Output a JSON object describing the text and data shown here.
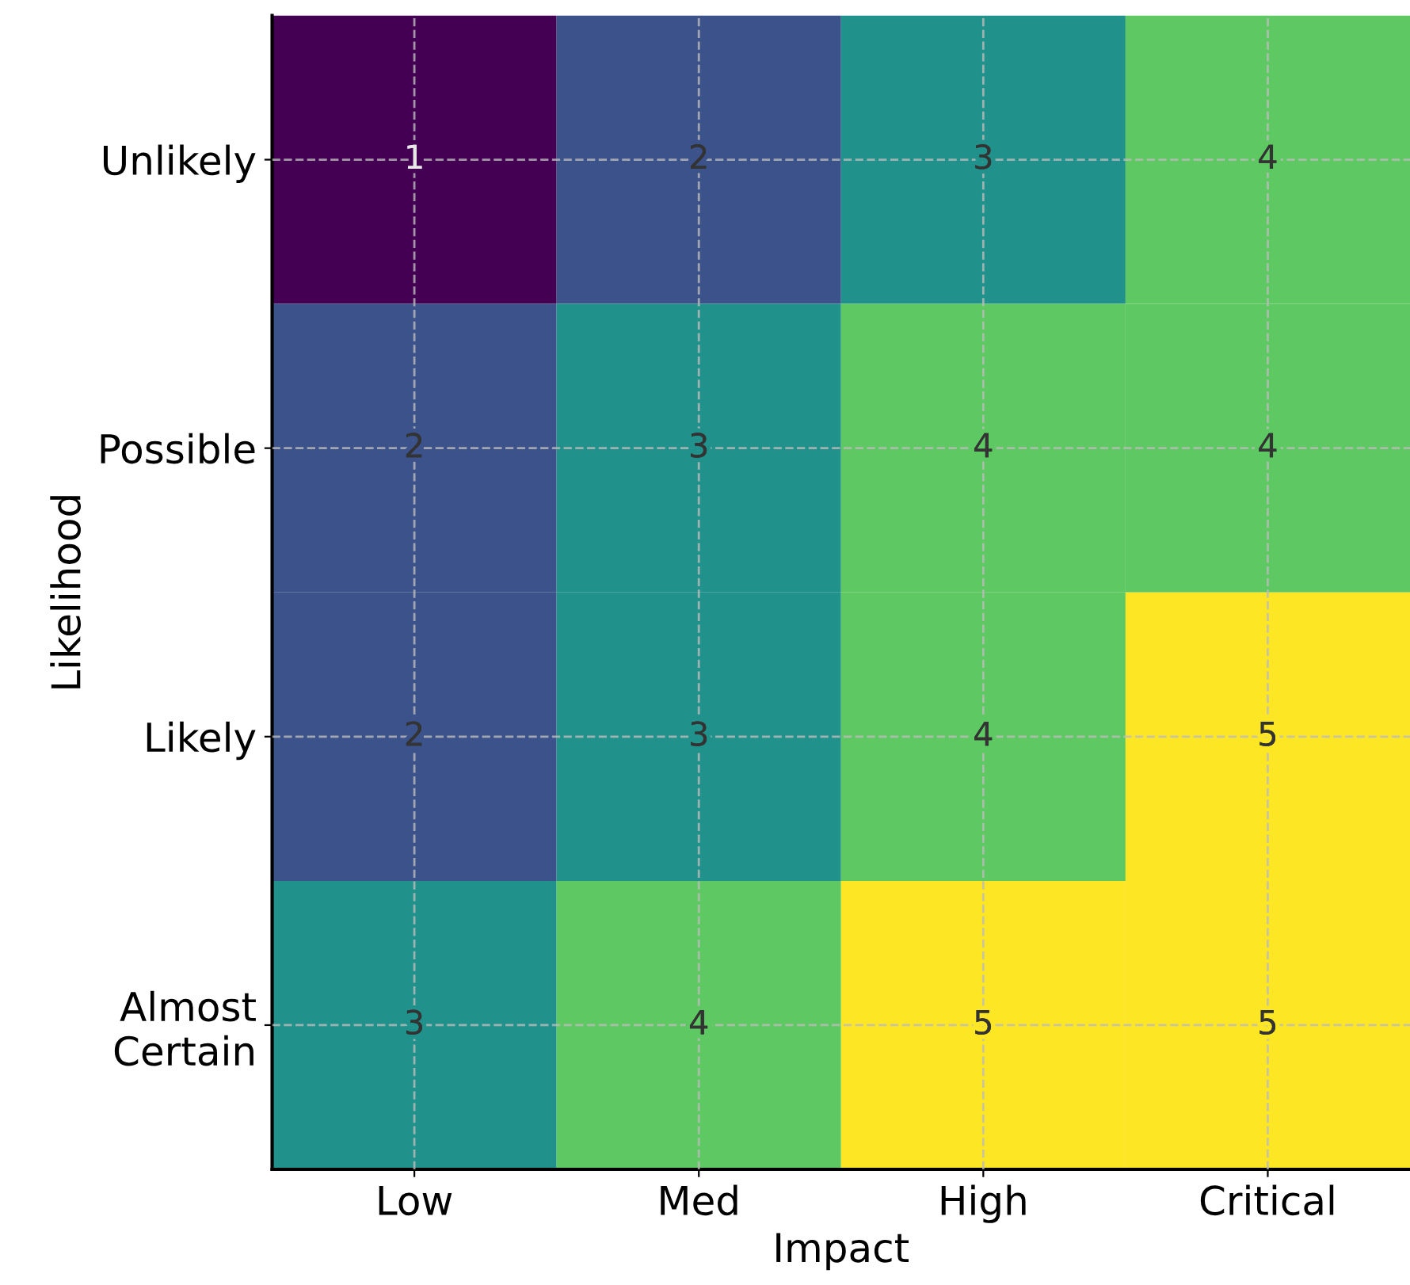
{
  "chart_data": {
    "type": "heatmap",
    "xlabel": "Impact",
    "ylabel": "Likelihood",
    "categories": [
      "Low",
      "Med",
      "High",
      "Critical"
    ],
    "y_categories": [
      "Unlikely",
      "Possible",
      "Likely",
      "Almost\nCertain"
    ],
    "cells": [
      [
        1,
        2,
        3,
        4
      ],
      [
        2,
        3,
        4,
        4
      ],
      [
        2,
        3,
        4,
        5
      ],
      [
        3,
        4,
        5,
        5
      ]
    ],
    "data_labels": true,
    "grid": true
  }
}
